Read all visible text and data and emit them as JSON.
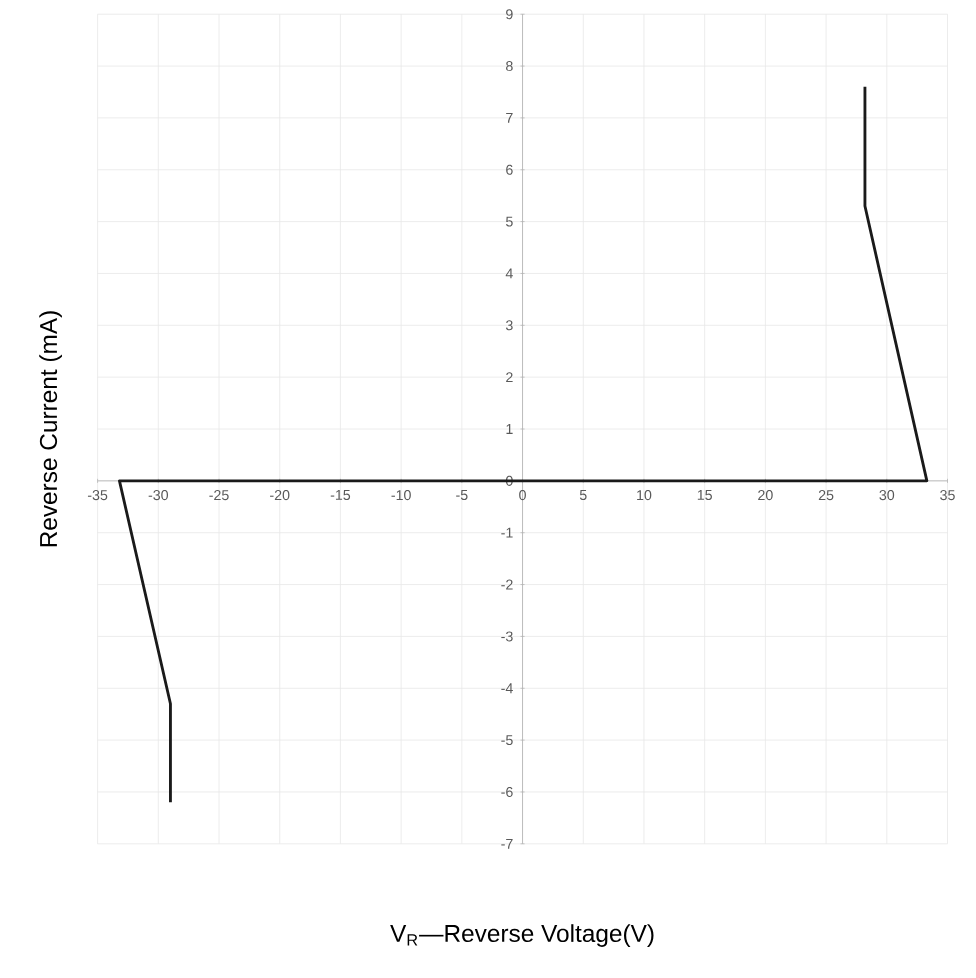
{
  "chart_data": {
    "type": "line",
    "xlabel": "V$_{R}$—Reverse Voltage(V)",
    "ylabel": "Reverse Current (mA)",
    "xlim": [
      -35,
      35
    ],
    "ylim": [
      -7,
      9
    ],
    "xticks": [
      -35,
      -30,
      -25,
      -20,
      -15,
      -10,
      -5,
      0,
      5,
      10,
      15,
      20,
      25,
      30,
      35
    ],
    "yticks": [
      -7,
      -6,
      -5,
      -4,
      -3,
      -2,
      -1,
      0,
      1,
      2,
      3,
      4,
      5,
      6,
      7,
      8,
      9
    ],
    "grid": true,
    "marker": "none",
    "line_style": "solid",
    "series": [
      {
        "color": "#1a1a1a",
        "x": [
          -29.0,
          -29.0,
          -33.2,
          33.3,
          28.2,
          28.2
        ],
        "values": [
          -6.2,
          -4.3,
          0,
          0,
          5.3,
          7.6
        ]
      }
    ]
  }
}
